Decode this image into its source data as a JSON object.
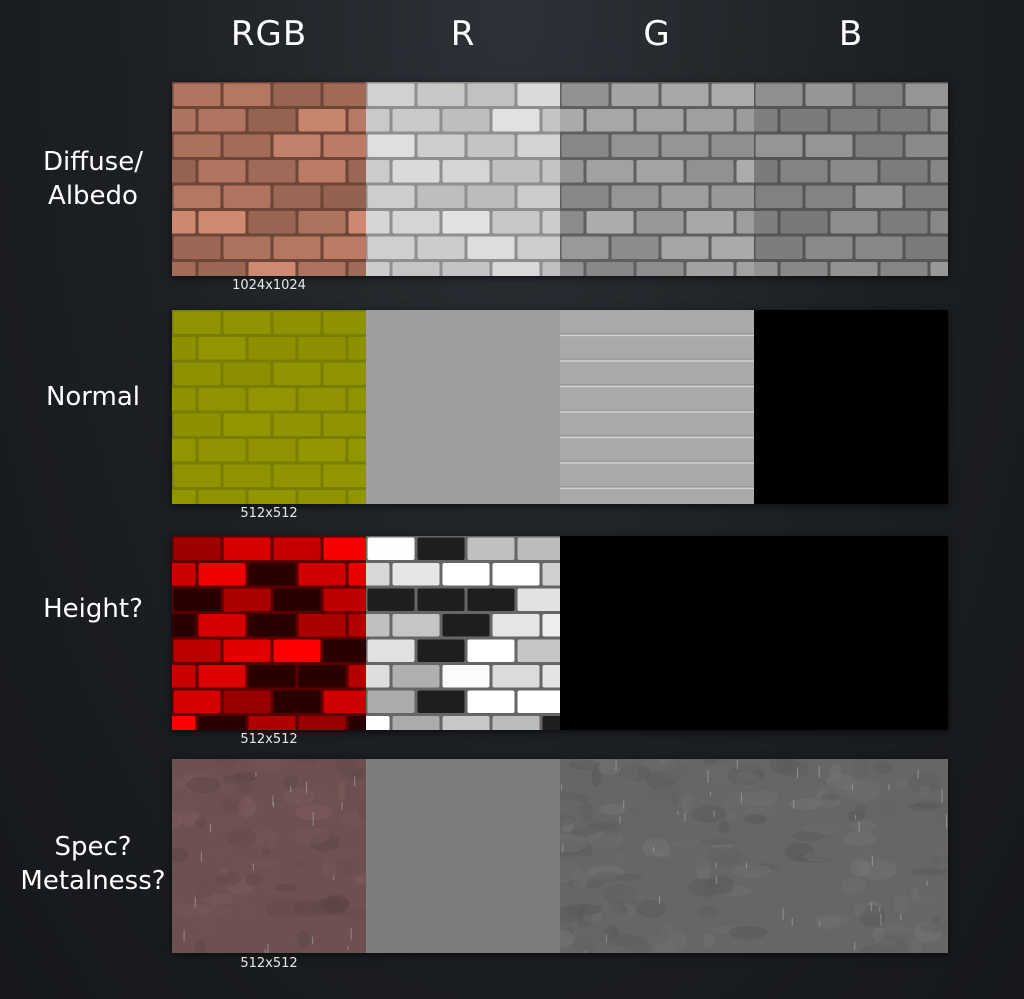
{
  "columns": [
    "RGB",
    "R",
    "G",
    "B"
  ],
  "rows": [
    {
      "label": "Diffuse/\nAlbedo",
      "resolution": "1024x1024"
    },
    {
      "label": "Normal",
      "resolution": "512x512"
    },
    {
      "label": "Height?",
      "resolution": "512x512"
    },
    {
      "label": "Spec?\nMetalness?",
      "resolution": "512x512"
    }
  ],
  "colors": {
    "diffuse_rgb": "#b07560",
    "diffuse_r": "#cfcfcf",
    "diffuse_g": "#9a9a9a",
    "diffuse_b": "#8a8a8a",
    "normal_rgb": "#8f9300",
    "normal_r": "#9e9e9e",
    "normal_g": "#a9a9a9",
    "normal_b": "#000000",
    "height_rgb": "#d40000",
    "height_r": "#d8d8d8",
    "height_gb": "#000000",
    "spec_rgb": "#6e5050",
    "spec_r": "#7d7d7d",
    "spec_gb": "#666666"
  }
}
